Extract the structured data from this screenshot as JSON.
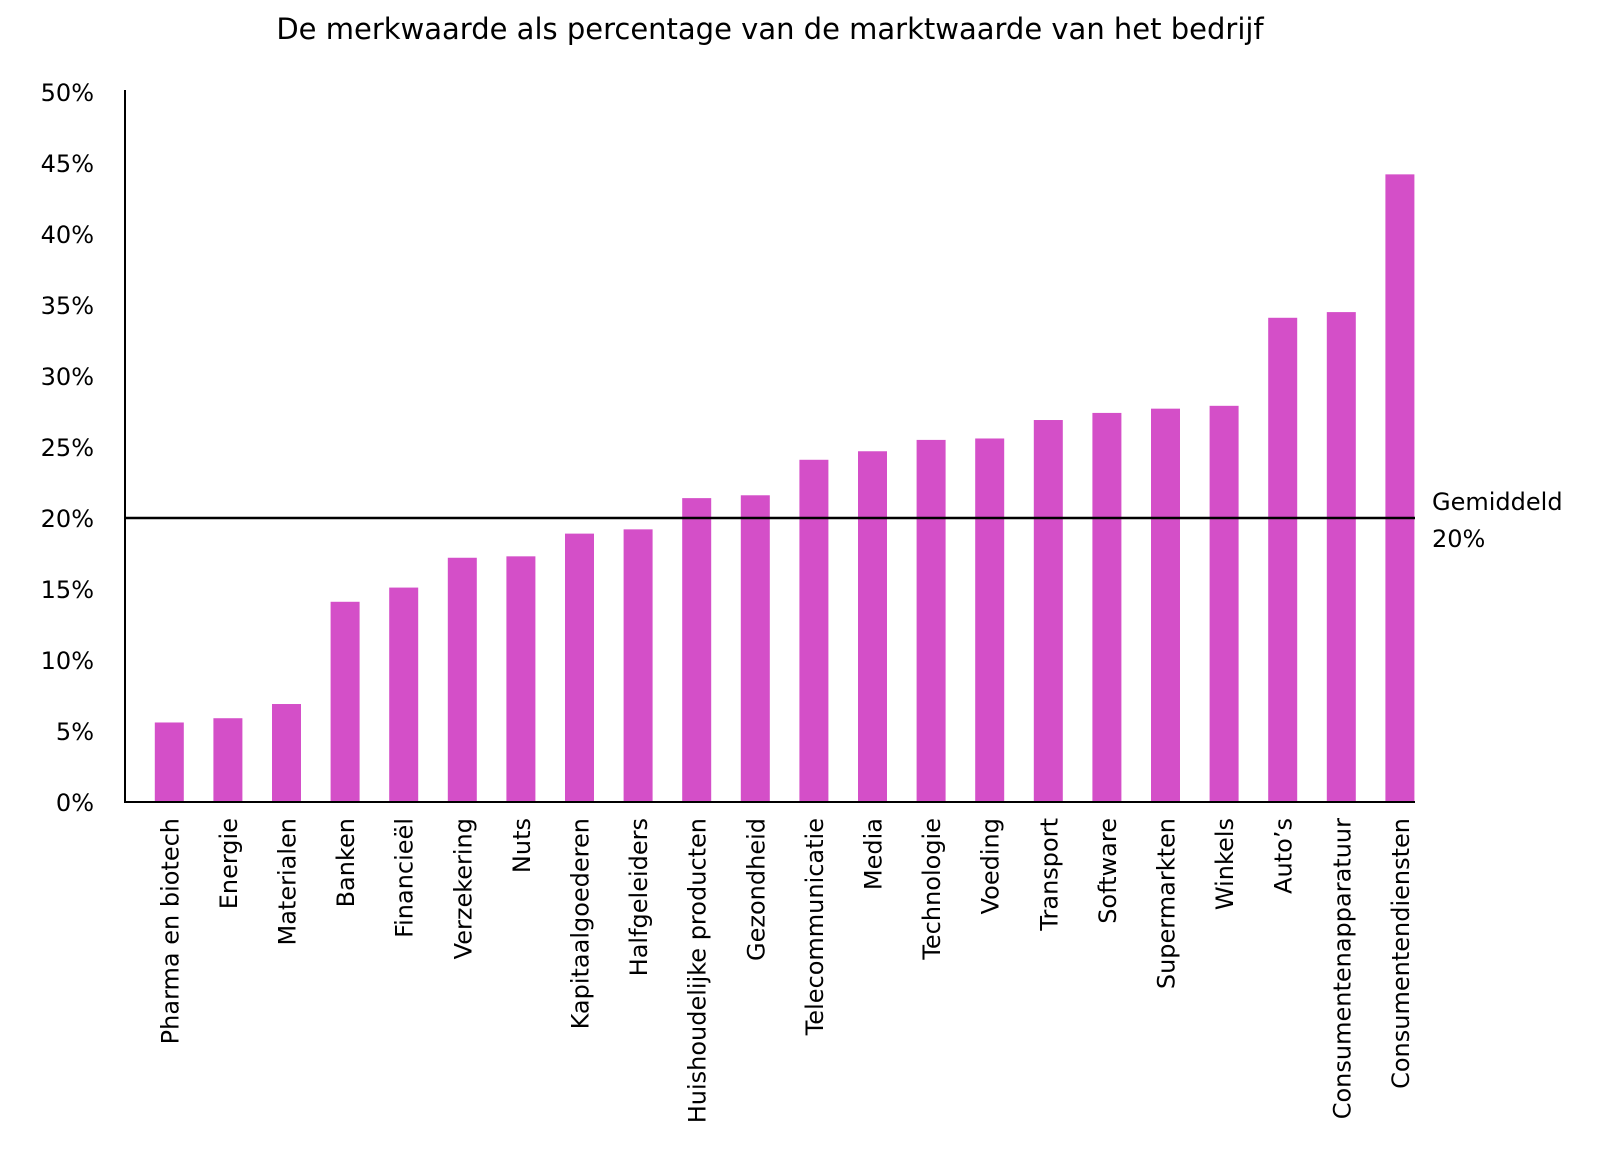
{
  "chart_data": {
    "type": "bar",
    "title": "De merkwaarde als percentage van de marktwaarde van het bedrijf",
    "xlabel": "",
    "ylabel": "",
    "ylim": [
      0,
      50
    ],
    "yticks": [
      "0%",
      "5%",
      "10%",
      "15%",
      "20%",
      "25%",
      "30%",
      "35%",
      "40%",
      "45%",
      "50%"
    ],
    "categories": [
      "Pharma en biotech",
      "Energie",
      "Materialen",
      "Banken",
      "Financieël",
      "Verzekering",
      "Nuts",
      "Kapitaalgoederen",
      "Halfgeleiders",
      "Huishoudelijke producten",
      "Gezondheid",
      "Telecommunicatie",
      "Media",
      "Technologie",
      "Voeding",
      "Transport",
      "Software",
      "Supermarkten",
      "Winkels",
      "Auto’s",
      "Consumentenapparatuur",
      "Consumentendiensten"
    ],
    "values": [
      5.6,
      5.9,
      6.9,
      14.1,
      15.1,
      17.2,
      17.3,
      18.9,
      19.2,
      21.4,
      21.6,
      24.1,
      24.7,
      25.5,
      25.6,
      26.9,
      27.4,
      27.7,
      27.9,
      34.1,
      34.5,
      44.2
    ],
    "grid": false,
    "legend": "none",
    "reference_line": {
      "value": 20,
      "label_line1": "Gemiddeld",
      "label_line2": "20%"
    },
    "colors": {
      "bar": "#d44fc8",
      "axis": "#000000",
      "reference": "#000000"
    }
  }
}
